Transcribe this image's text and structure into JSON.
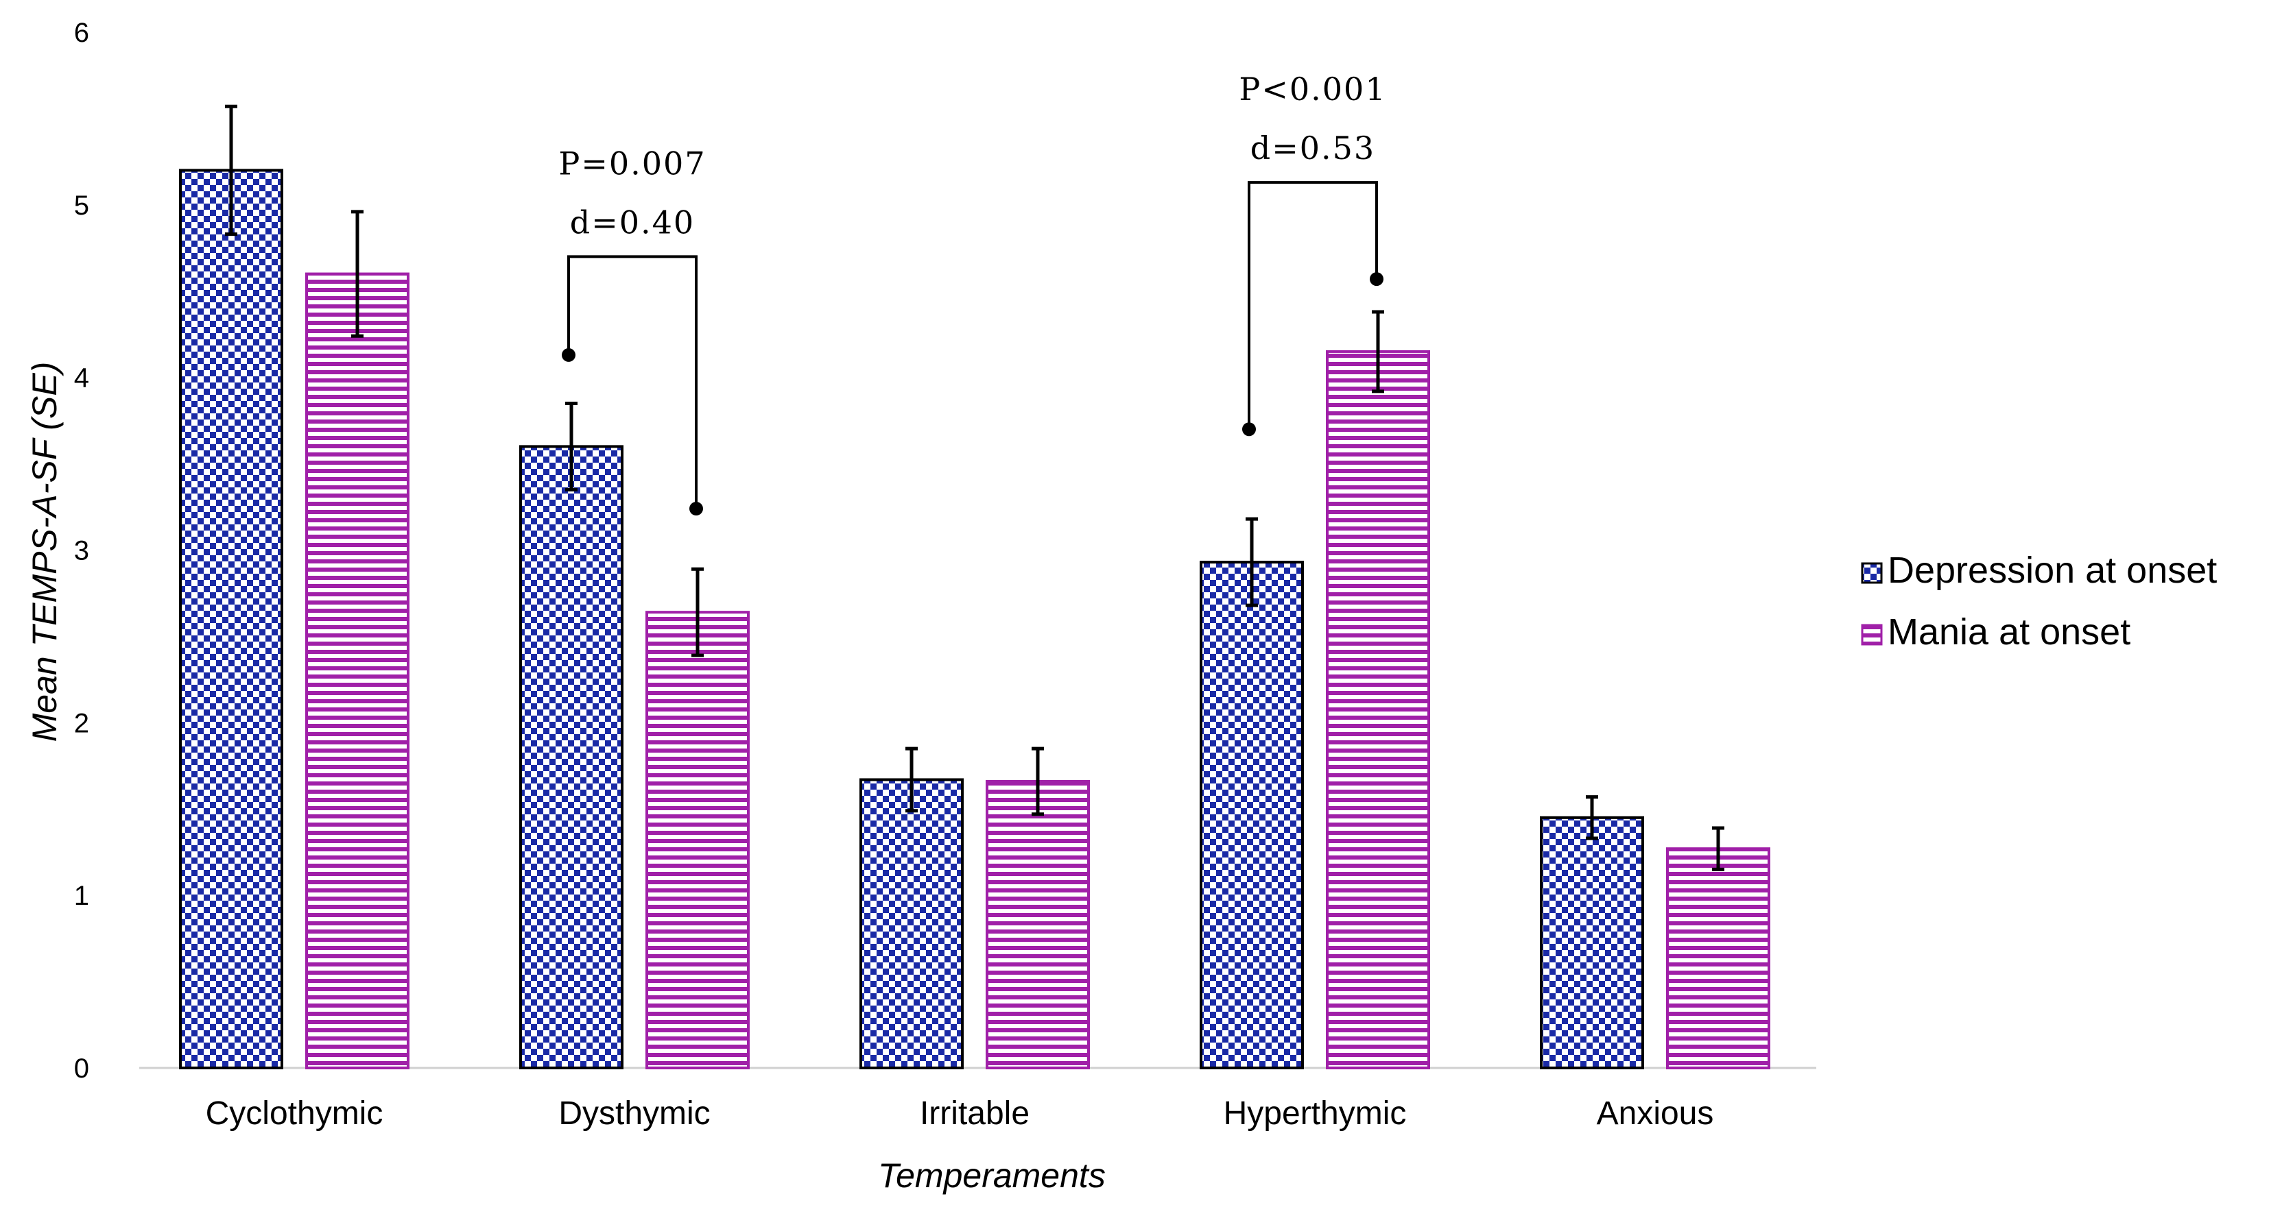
{
  "chart_data": {
    "type": "bar",
    "title": "",
    "xlabel": "Temperaments",
    "ylabel": "Mean TEMPS-A-SF (SE)",
    "ylim": [
      0,
      6
    ],
    "yticks": [
      0,
      1,
      2,
      3,
      4,
      5,
      6
    ],
    "grid": false,
    "legend_position": "right",
    "categories": [
      "Cyclothymic",
      "Dysthymic",
      "Irritable",
      "Hyperthymic",
      "Anxious"
    ],
    "series": [
      {
        "name": "Depression at onset",
        "pattern": "checkerboard",
        "color": "#1a2aa6",
        "values": [
          5.2,
          3.6,
          1.67,
          2.93,
          1.45
        ],
        "se": [
          0.37,
          0.25,
          0.18,
          0.25,
          0.12
        ]
      },
      {
        "name": "Mania at onset",
        "pattern": "horizontal-stripes",
        "color": "#a020a8",
        "values": [
          4.6,
          2.64,
          1.66,
          4.15,
          1.27
        ],
        "se": [
          0.36,
          0.25,
          0.19,
          0.23,
          0.12
        ]
      }
    ],
    "annotations": [
      {
        "category": "Dysthymic",
        "lines": [
          "P=0.007",
          "d=0.40"
        ],
        "bracket_top": 4.7,
        "dot_values": [
          4.13,
          3.24
        ]
      },
      {
        "category": "Hyperthymic",
        "lines": [
          "P<0.001",
          "d=0.53"
        ],
        "bracket_top": 5.13,
        "dot_values": [
          3.7,
          4.57
        ]
      }
    ]
  }
}
